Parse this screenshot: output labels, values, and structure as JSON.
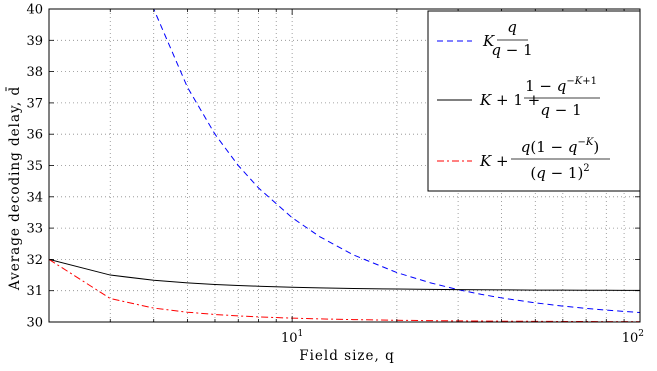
{
  "chart_data": {
    "type": "line",
    "xscale": "log",
    "xlim": [
      2,
      100
    ],
    "ylim": [
      30,
      40
    ],
    "grid": true,
    "legend_position": "top-right",
    "xlabel": "Field size, q",
    "ylabel": "Average decoding delay, d̄",
    "x_tick_labels": [
      "10",
      "10"
    ],
    "x_tick_exponents": [
      "1",
      "2"
    ],
    "y_ticks": [
      30,
      31,
      32,
      33,
      34,
      35,
      36,
      37,
      38,
      39,
      40
    ],
    "series": [
      {
        "name": "K q/(q − 1)",
        "color": "#0000ff",
        "dash": "dashed",
        "x": [
          3.97,
          4,
          5,
          6,
          7,
          8,
          10,
          12,
          15,
          20,
          25,
          30,
          35,
          40,
          50,
          60,
          70,
          80,
          90,
          100
        ],
        "y": [
          40.1,
          40.0,
          37.5,
          36.0,
          35.0,
          34.286,
          33.333,
          32.727,
          32.143,
          31.579,
          31.25,
          31.034,
          30.882,
          30.769,
          30.612,
          30.508,
          30.435,
          30.38,
          30.337,
          30.303
        ]
      },
      {
        "name": "K + 1 + (1 − q^(−K+1))/(q − 1)",
        "color": "#000000",
        "dash": "solid",
        "x": [
          2,
          3,
          4,
          5,
          6,
          7,
          8,
          10,
          12,
          15,
          20,
          25,
          30,
          40,
          50,
          60,
          70,
          80,
          90,
          100
        ],
        "y": [
          32.0,
          31.5,
          31.333,
          31.25,
          31.2,
          31.167,
          31.143,
          31.111,
          31.091,
          31.071,
          31.053,
          31.042,
          31.034,
          31.026,
          31.02,
          31.017,
          31.014,
          31.013,
          31.011,
          31.01
        ]
      },
      {
        "name": "K + q(1 − q^(−K))/(q − 1)^2",
        "color": "#ff0000",
        "dash": "dashdot",
        "x": [
          2,
          3,
          4,
          5,
          6,
          7,
          8,
          10,
          12,
          15,
          20,
          25,
          30,
          40,
          50,
          60,
          70,
          80,
          90,
          100
        ],
        "y": [
          32.0,
          30.75,
          30.444,
          30.313,
          30.24,
          30.194,
          30.163,
          30.123,
          30.099,
          30.077,
          30.055,
          30.043,
          30.036,
          30.026,
          30.021,
          30.017,
          30.015,
          30.013,
          30.011,
          30.01
        ]
      }
    ]
  }
}
